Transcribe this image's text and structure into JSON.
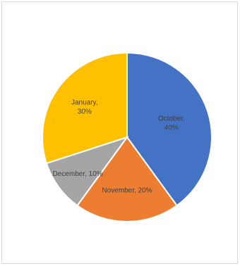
{
  "chart_data": {
    "type": "pie",
    "title": "",
    "categories": [
      "October",
      "November",
      "December",
      "January"
    ],
    "values": [
      40,
      20,
      10,
      30
    ],
    "unit": "%",
    "legend": "none",
    "slices": [
      {
        "label": "October",
        "value": 40,
        "color": "#4472C4",
        "label_line1": "October,",
        "label_line2": "40%"
      },
      {
        "label": "November",
        "value": 20,
        "color": "#ED7D31",
        "label_line1": "November, 20%",
        "label_line2": ""
      },
      {
        "label": "December",
        "value": 10,
        "color": "#A5A5A5",
        "label_line1": "December, 10%",
        "label_line2": ""
      },
      {
        "label": "January",
        "value": 30,
        "color": "#FFC000",
        "label_line1": "January,",
        "label_line2": "30%"
      }
    ]
  }
}
